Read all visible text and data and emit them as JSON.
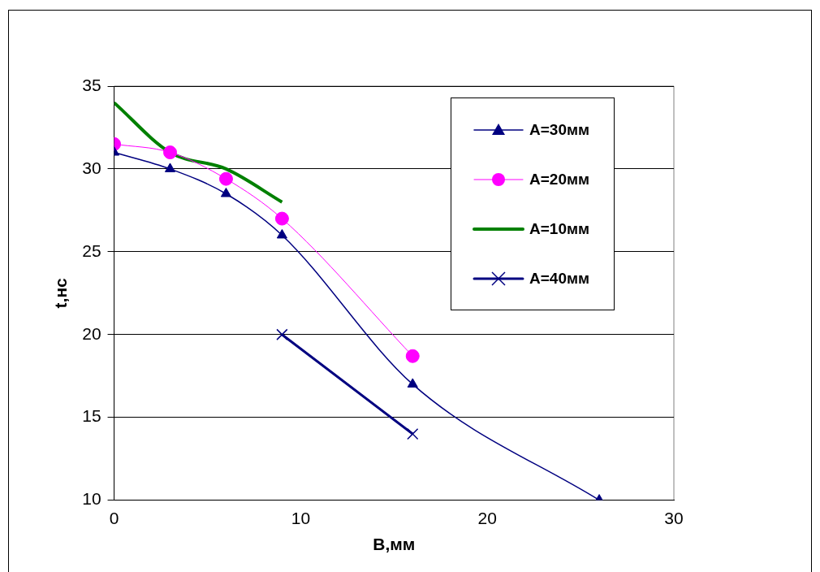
{
  "chart_data": {
    "type": "line",
    "xlabel": "B,мм",
    "ylabel": "t,нс",
    "xlim": [
      0,
      30
    ],
    "xticks": [
      0,
      10,
      20,
      30
    ],
    "ylim": [
      10,
      35
    ],
    "yticks": [
      10,
      15,
      20,
      25,
      30,
      35
    ],
    "grid": "y",
    "legend": "top right",
    "series": [
      {
        "name": "A=30мм",
        "color": "#000080",
        "marker": "triangle",
        "x": [
          0,
          3,
          6,
          9,
          16,
          26
        ],
        "values": [
          31,
          30,
          28.5,
          26,
          17,
          10
        ]
      },
      {
        "name": "A=20мм",
        "color": "#ff00ff",
        "marker": "circle",
        "x": [
          0,
          3,
          6,
          9,
          16
        ],
        "values": [
          31.5,
          31,
          29.4,
          27,
          18.7
        ]
      },
      {
        "name": "A=10мм",
        "color": "#008000",
        "marker": "none",
        "x": [
          0,
          3,
          6,
          9
        ],
        "values": [
          34,
          31,
          30,
          28
        ]
      },
      {
        "name": "A=40мм",
        "color": "#000080",
        "marker": "cross",
        "x": [
          9,
          16
        ],
        "values": [
          20,
          14
        ]
      }
    ]
  }
}
